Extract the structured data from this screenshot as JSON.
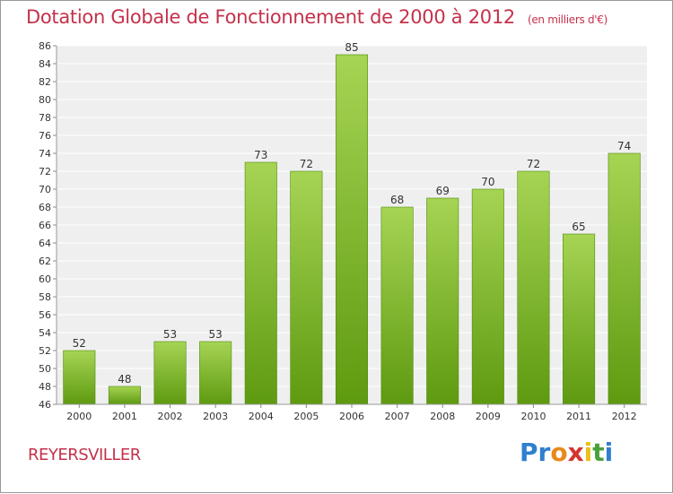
{
  "title": "Dotation Globale de Fonctionnement de 2000 à 2012",
  "unit": "(en milliers d'€)",
  "commune": "REYERSVILLER",
  "logo": "Proxiti",
  "colors": {
    "title": "#c4314a",
    "bar_light": "#a6d454",
    "bar_dark": "#5e9a10",
    "plot_bg": "#efefef",
    "grid": "#ffffff"
  },
  "chart_data": {
    "type": "bar",
    "title": "Dotation Globale de Fonctionnement de 2000 à 2012",
    "xlabel": "",
    "ylabel": "",
    "categories": [
      "2000",
      "2001",
      "2002",
      "2003",
      "2004",
      "2005",
      "2006",
      "2007",
      "2008",
      "2009",
      "2010",
      "2011",
      "2012"
    ],
    "values": [
      52,
      48,
      53,
      53,
      73,
      72,
      85,
      68,
      69,
      70,
      72,
      65,
      74
    ],
    "ylim": [
      46,
      86
    ],
    "yticks": [
      46,
      48,
      50,
      52,
      54,
      56,
      58,
      60,
      62,
      64,
      66,
      68,
      70,
      72,
      74,
      76,
      78,
      80,
      82,
      84,
      86
    ],
    "grid": true,
    "data_labels": true
  }
}
